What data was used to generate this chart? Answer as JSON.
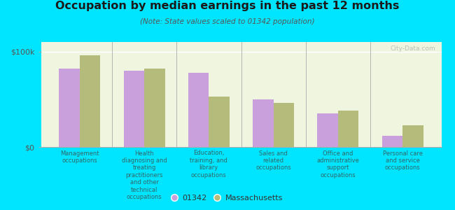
{
  "title": "Occupation by median earnings in the past 12 months",
  "subtitle": "(Note: State values scaled to 01342 population)",
  "categories": [
    "Management\noccupations",
    "Health\ndiagnosing and\ntreating\npractitioners\nand other\ntechnical\noccupations",
    "Education,\ntraining, and\nlibrary\noccupations",
    "Sales and\nrelated\noccupations",
    "Office and\nadministrative\nsupport\noccupations",
    "Personal care\nand service\noccupations"
  ],
  "values_01342": [
    82000,
    80000,
    78000,
    50000,
    35000,
    12000
  ],
  "values_mass": [
    96000,
    82000,
    53000,
    46000,
    38000,
    23000
  ],
  "color_01342": "#c9a0dc",
  "color_mass": "#b5bb7a",
  "background_color": "#00e5ff",
  "plot_bg_color_top": "#f5f8e8",
  "plot_bg_color_bot": "#e8f0d0",
  "ylabel_0": "$0",
  "ylabel_100k": "$100k",
  "ylim": [
    0,
    110000
  ],
  "legend_01342": "01342",
  "legend_mass": "Massachusetts",
  "watermark": "City-Data.com"
}
